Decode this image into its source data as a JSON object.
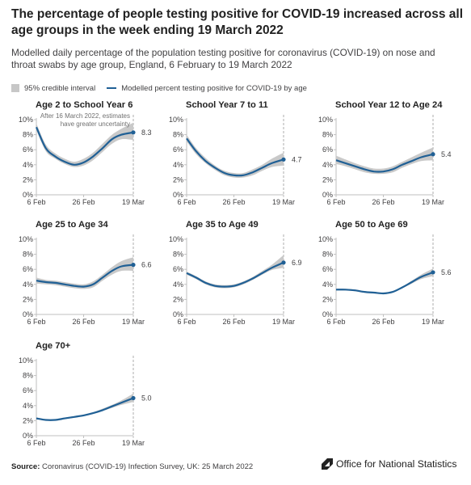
{
  "title": "The percentage of people testing positive for COVID-19 increased across all age groups in the week ending 19 March 2022",
  "subtitle": "Modelled daily percentage of the population testing positive for coronavirus (COVID-19) on nose and throat swabs by age group, England, 6 February to 19 March 2022",
  "legend": {
    "ci_label": "95% credible interval",
    "line_label": "Modelled percent testing positive for COVID-19 by age"
  },
  "colors": {
    "line": "#206095",
    "ci": "#c9c9c9",
    "axis": "#bfbfbf"
  },
  "annotation": {
    "line1": "After 16 March 2022, estimates",
    "line2": "have greater uncertainty"
  },
  "footer": {
    "source_label": "Source:",
    "source_text": "Coronavirus (COVID-19) Infection Survey, UK: 25 March 2022",
    "logo_text": "Office for National Statistics"
  },
  "chart_data": {
    "type": "line",
    "x_ticks": [
      "6 Feb",
      "26 Feb",
      "19 Mar"
    ],
    "y_ticks": [
      "0%",
      "2%",
      "4%",
      "6%",
      "8%",
      "10%"
    ],
    "ylim": [
      0,
      10
    ],
    "xlim": [
      "6 Feb",
      "19 Mar"
    ],
    "uncertainty_from": "16 Mar",
    "panels": [
      {
        "title": "Age 2 to School Year 6",
        "end_label": "8.3",
        "x": [
          "6 Feb",
          "10 Feb",
          "14 Feb",
          "18 Feb",
          "22 Feb",
          "26 Feb",
          "2 Mar",
          "6 Mar",
          "10 Mar",
          "14 Mar",
          "19 Mar"
        ],
        "y": [
          9.0,
          6.2,
          5.1,
          4.4,
          4.0,
          4.3,
          5.1,
          6.2,
          7.4,
          8.0,
          8.3
        ],
        "ci_low": [
          8.6,
          5.8,
          4.8,
          4.1,
          3.7,
          3.9,
          4.6,
          5.7,
          6.8,
          7.4,
          7.3
        ],
        "ci_high": [
          9.5,
          6.7,
          5.5,
          4.8,
          4.4,
          4.8,
          5.6,
          6.8,
          8.0,
          8.8,
          9.6
        ]
      },
      {
        "title": "School Year 7 to 11",
        "end_label": "4.7",
        "x": [
          "6 Feb",
          "10 Feb",
          "14 Feb",
          "18 Feb",
          "22 Feb",
          "26 Feb",
          "2 Mar",
          "6 Mar",
          "10 Mar",
          "14 Mar",
          "19 Mar"
        ],
        "y": [
          7.5,
          5.8,
          4.5,
          3.6,
          2.9,
          2.6,
          2.6,
          3.0,
          3.6,
          4.2,
          4.7
        ],
        "ci_low": [
          7.1,
          5.4,
          4.2,
          3.3,
          2.6,
          2.3,
          2.3,
          2.6,
          3.2,
          3.7,
          3.9
        ],
        "ci_high": [
          8.0,
          6.2,
          4.9,
          3.9,
          3.2,
          2.9,
          2.9,
          3.4,
          4.0,
          4.8,
          5.6
        ]
      },
      {
        "title": "School Year 12 to Age 24",
        "end_label": "5.4",
        "x": [
          "6 Feb",
          "10 Feb",
          "14 Feb",
          "18 Feb",
          "22 Feb",
          "26 Feb",
          "2 Mar",
          "6 Mar",
          "10 Mar",
          "14 Mar",
          "19 Mar"
        ],
        "y": [
          4.6,
          4.2,
          3.8,
          3.4,
          3.1,
          3.1,
          3.4,
          4.0,
          4.5,
          5.0,
          5.4
        ],
        "ci_low": [
          4.1,
          3.8,
          3.4,
          3.0,
          2.8,
          2.8,
          3.0,
          3.6,
          4.1,
          4.5,
          4.6
        ],
        "ci_high": [
          5.2,
          4.7,
          4.2,
          3.8,
          3.5,
          3.5,
          3.8,
          4.4,
          5.0,
          5.6,
          6.3
        ]
      },
      {
        "title": "Age 25 to Age 34",
        "end_label": "6.6",
        "x": [
          "6 Feb",
          "10 Feb",
          "14 Feb",
          "18 Feb",
          "22 Feb",
          "26 Feb",
          "2 Mar",
          "6 Mar",
          "10 Mar",
          "14 Mar",
          "19 Mar"
        ],
        "y": [
          4.5,
          4.3,
          4.2,
          4.0,
          3.8,
          3.7,
          4.0,
          4.9,
          5.8,
          6.4,
          6.6
        ],
        "ci_low": [
          4.1,
          4.0,
          3.9,
          3.7,
          3.5,
          3.4,
          3.6,
          4.5,
          5.3,
          5.8,
          5.8
        ],
        "ci_high": [
          4.9,
          4.6,
          4.5,
          4.3,
          4.1,
          4.0,
          4.4,
          5.3,
          6.3,
          7.1,
          7.6
        ]
      },
      {
        "title": "Age 35 to Age 49",
        "end_label": "6.9",
        "x": [
          "6 Feb",
          "10 Feb",
          "14 Feb",
          "18 Feb",
          "22 Feb",
          "26 Feb",
          "2 Mar",
          "6 Mar",
          "10 Mar",
          "14 Mar",
          "19 Mar"
        ],
        "y": [
          5.5,
          4.9,
          4.2,
          3.8,
          3.7,
          3.8,
          4.2,
          4.8,
          5.5,
          6.2,
          6.9
        ],
        "ci_low": [
          5.3,
          4.7,
          4.0,
          3.6,
          3.5,
          3.6,
          4.0,
          4.6,
          5.3,
          5.9,
          6.2
        ],
        "ci_high": [
          5.7,
          5.1,
          4.4,
          4.0,
          3.9,
          4.0,
          4.4,
          5.0,
          5.8,
          6.6,
          7.9
        ]
      },
      {
        "title": "Age 50 to Age 69",
        "end_label": "5.6",
        "x": [
          "6 Feb",
          "10 Feb",
          "14 Feb",
          "18 Feb",
          "22 Feb",
          "26 Feb",
          "2 Mar",
          "6 Mar",
          "10 Mar",
          "14 Mar",
          "19 Mar"
        ],
        "y": [
          3.3,
          3.3,
          3.2,
          3.0,
          2.9,
          2.8,
          3.0,
          3.6,
          4.3,
          5.0,
          5.6
        ],
        "ci_low": [
          3.2,
          3.2,
          3.1,
          2.9,
          2.8,
          2.7,
          2.9,
          3.5,
          4.1,
          4.7,
          5.1
        ],
        "ci_high": [
          3.4,
          3.4,
          3.3,
          3.1,
          3.0,
          2.9,
          3.1,
          3.7,
          4.5,
          5.3,
          6.1
        ]
      },
      {
        "title": "Age 70+",
        "end_label": "5.0",
        "x": [
          "6 Feb",
          "10 Feb",
          "14 Feb",
          "18 Feb",
          "22 Feb",
          "26 Feb",
          "2 Mar",
          "6 Mar",
          "10 Mar",
          "14 Mar",
          "19 Mar"
        ],
        "y": [
          2.3,
          2.1,
          2.1,
          2.3,
          2.5,
          2.7,
          3.0,
          3.4,
          3.9,
          4.4,
          5.0
        ],
        "ci_low": [
          2.2,
          2.0,
          2.0,
          2.2,
          2.4,
          2.6,
          2.9,
          3.3,
          3.7,
          4.1,
          4.5
        ],
        "ci_high": [
          2.4,
          2.2,
          2.2,
          2.4,
          2.6,
          2.8,
          3.1,
          3.6,
          4.1,
          4.7,
          5.6
        ]
      }
    ]
  }
}
